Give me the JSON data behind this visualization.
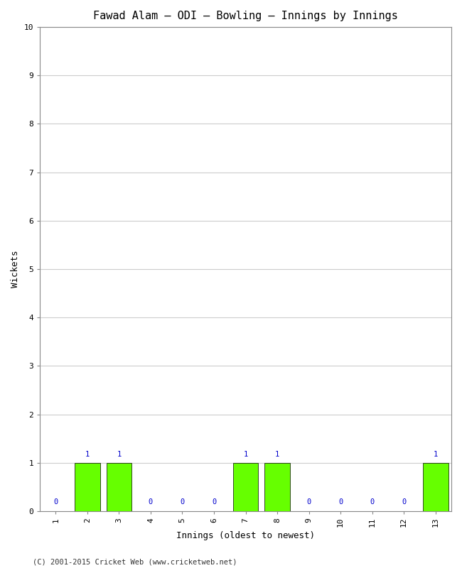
{
  "title": "Fawad Alam – ODI – Bowling – Innings by Innings",
  "xlabel": "Innings (oldest to newest)",
  "ylabel": "Wickets",
  "categories": [
    1,
    2,
    3,
    4,
    5,
    6,
    7,
    8,
    9,
    10,
    11,
    12,
    13
  ],
  "values": [
    0,
    1,
    1,
    0,
    0,
    0,
    1,
    1,
    0,
    0,
    0,
    0,
    1
  ],
  "bar_color": "#66ff00",
  "bar_edge_color": "#000000",
  "label_color": "#0000cc",
  "ylim": [
    0,
    10
  ],
  "yticks": [
    0,
    1,
    2,
    3,
    4,
    5,
    6,
    7,
    8,
    9,
    10
  ],
  "background_color": "#ffffff",
  "grid_color": "#cccccc",
  "footer": "(C) 2001-2015 Cricket Web (www.cricketweb.net)",
  "title_fontsize": 11,
  "label_fontsize": 9,
  "tick_fontsize": 8,
  "footer_fontsize": 7.5,
  "annotation_fontsize": 7.5
}
